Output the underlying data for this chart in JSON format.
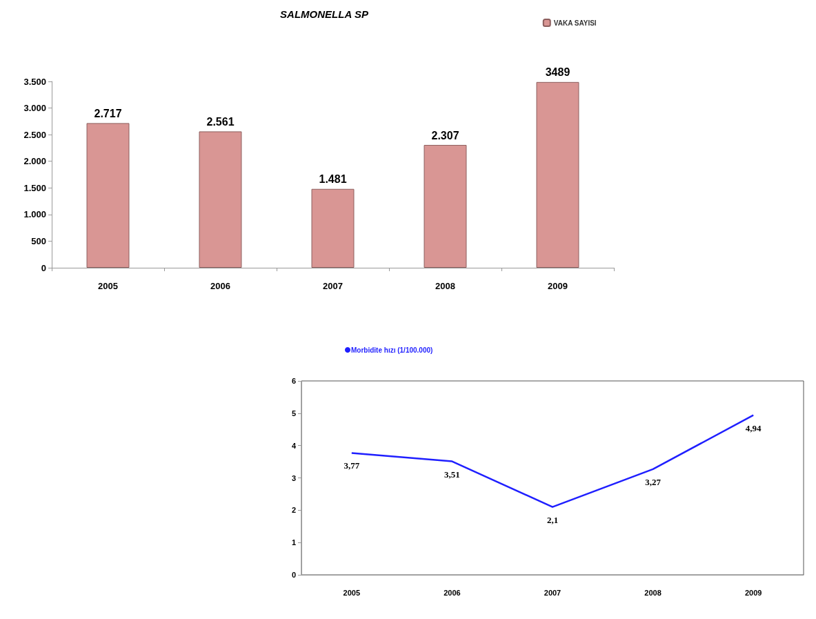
{
  "chart_data": [
    {
      "type": "bar",
      "title": "SALMONELLA SP",
      "categories": [
        "2005",
        "2006",
        "2007",
        "2008",
        "2009"
      ],
      "series": [
        {
          "name": "VAKA SAYISI",
          "color": "#d99694",
          "values": [
            2717,
            2561,
            1481,
            2307,
            3489
          ],
          "value_labels": [
            "2.717",
            "2.561",
            "1.481",
            "2.307",
            "3489"
          ]
        }
      ],
      "ylim": [
        0,
        3500
      ],
      "yticks": [
        0,
        {
          "value": 500,
          "label": "500"
        },
        {
          "value": 1000,
          "label": "1.000"
        },
        {
          "value": 1500,
          "label": "1.500"
        },
        {
          "value": 2000,
          "label": "2.000"
        },
        {
          "value": 2500,
          "label": "2.500"
        },
        {
          "value": 3000,
          "label": "3.000"
        },
        {
          "value": 3500,
          "label": "3.500"
        }
      ],
      "legend": "top right",
      "grid": false
    },
    {
      "type": "line",
      "categories": [
        "2005",
        "2006",
        "2007",
        "2008",
        "2009"
      ],
      "series": [
        {
          "name": "Morbidite hızı (1/100.000)",
          "color": "#1f1fff",
          "values": [
            3.77,
            3.51,
            2.1,
            3.27,
            4.94
          ],
          "value_labels": [
            "3,77",
            "3,51",
            "2,1",
            "3,27",
            "4,94"
          ]
        }
      ],
      "ylim": [
        0,
        6
      ],
      "yticks": [
        0,
        1,
        2,
        3,
        4,
        5,
        6
      ],
      "legend": "top left",
      "grid": false,
      "marker": "none"
    }
  ]
}
